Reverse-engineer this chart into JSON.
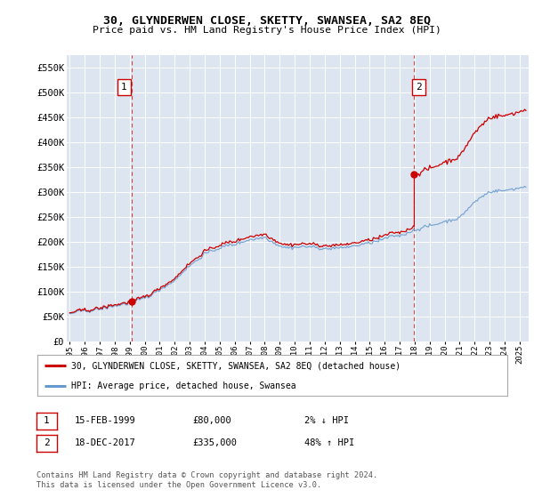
{
  "title": "30, GLYNDERWEN CLOSE, SKETTY, SWANSEA, SA2 8EQ",
  "subtitle": "Price paid vs. HM Land Registry's House Price Index (HPI)",
  "legend_property": "30, GLYNDERWEN CLOSE, SKETTY, SWANSEA, SA2 8EQ (detached house)",
  "legend_hpi": "HPI: Average price, detached house, Swansea",
  "footnote": "Contains HM Land Registry data © Crown copyright and database right 2024.\nThis data is licensed under the Open Government Licence v3.0.",
  "transaction1_date": "15-FEB-1999",
  "transaction1_price": "£80,000",
  "transaction1_hpi": "2% ↓ HPI",
  "transaction2_date": "18-DEC-2017",
  "transaction2_price": "£335,000",
  "transaction2_hpi": "48% ↑ HPI",
  "ylim": [
    0,
    575000
  ],
  "yticks": [
    0,
    50000,
    100000,
    150000,
    200000,
    250000,
    300000,
    350000,
    400000,
    450000,
    500000,
    550000
  ],
  "ytick_labels": [
    "£0",
    "£50K",
    "£100K",
    "£150K",
    "£200K",
    "£250K",
    "£300K",
    "£350K",
    "£400K",
    "£450K",
    "£500K",
    "£550K"
  ],
  "property_color": "#cc0000",
  "hpi_color": "#6699cc",
  "vline_color": "#cc0000",
  "bg_color": "#dde5f0",
  "grid_color": "#ffffff",
  "transaction1_x": 1999.12,
  "transaction1_y": 80000,
  "transaction2_x": 2017.96,
  "transaction2_y": 335000,
  "xlim_left": 1994.8,
  "xlim_right": 2025.6
}
